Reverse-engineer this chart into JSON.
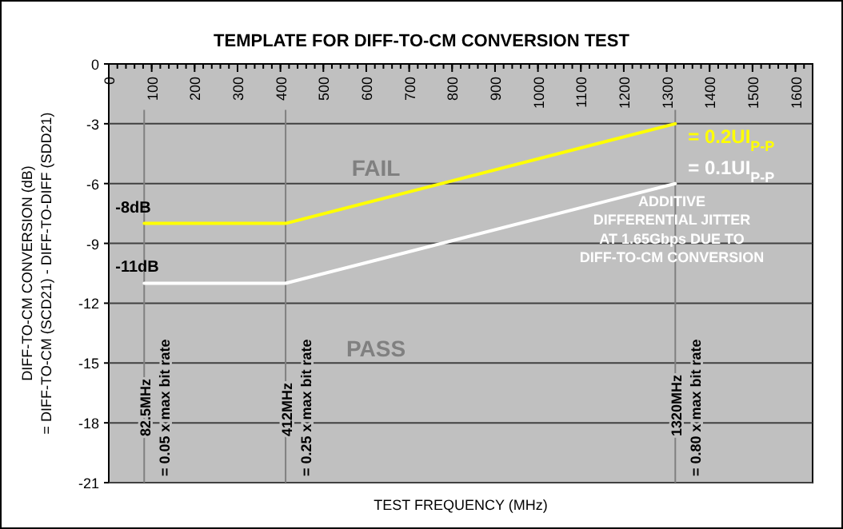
{
  "chart_data": {
    "type": "line",
    "title": "TEMPLATE FOR DIFF-TO-CM CONVERSION TEST",
    "xlabel": "TEST FREQUENCY (MHz)",
    "ylabel": "DIFF-TO-CM CONVERSION (dB)\n= DIFF-TO-CM (SCD21) - DIFF-TO-DIFF (SDD21)",
    "x": [
      82.5,
      412,
      1320
    ],
    "series": [
      {
        "name": "= 0.2UI$_{P-P}$",
        "color": "#ffff00",
        "values": [
          -8,
          -8,
          -3
        ]
      },
      {
        "name": "= 0.1UI$_{P-P}$",
        "color": "#ffffff",
        "values": [
          -11,
          -11,
          -6
        ]
      }
    ],
    "xlim": [
      0,
      1640
    ],
    "xticks": [
      0,
      100,
      200,
      300,
      400,
      500,
      600,
      700,
      800,
      900,
      1000,
      1100,
      1200,
      1300,
      1400,
      1500,
      1600
    ],
    "ylim": [
      -21,
      0
    ],
    "yticks": [
      -21,
      -18,
      -15,
      -12,
      -9,
      -6,
      -3,
      0
    ],
    "grid": "y",
    "legend": false,
    "marker": "none",
    "line_style": "solid",
    "ref_lines": [
      {
        "axis": "x",
        "value": 82.5,
        "label": "82.5MHz\n= 0.05 x max bit rate",
        "color": "#808080"
      },
      {
        "axis": "x",
        "value": 412,
        "label": "412MHz\n= 0.25 x max bit rate",
        "color": "#808080"
      },
      {
        "axis": "x",
        "value": 1320,
        "label": "1320MHz\n= 0.80 x max bit rate",
        "color": "#808080"
      }
    ],
    "annotations": [
      {
        "text": "-8dB",
        "x": 82.5,
        "y": -8
      },
      {
        "text": "-11dB",
        "x": 82.5,
        "y": -11
      },
      "FAIL",
      "PASS",
      "ADDITIVE\nDIFFERENTIAL JITTER\nAT 1.65Gbps DUE TO\nDIFF-TO-CM CONVERSION"
    ]
  }
}
